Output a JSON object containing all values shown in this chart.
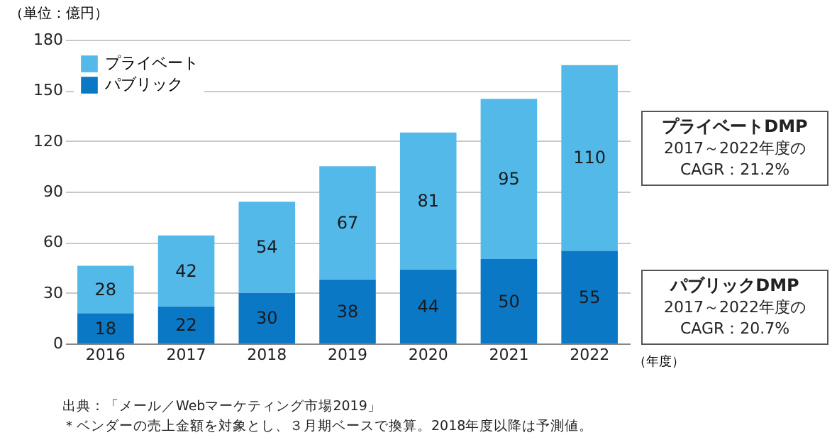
{
  "chart_data": {
    "type": "bar",
    "stacked": true,
    "ylabel": "（単位：億円）",
    "xlabel": "（年度）",
    "categories": [
      "2016",
      "2017",
      "2018",
      "2019",
      "2020",
      "2021",
      "2022"
    ],
    "series": [
      {
        "name": "パブリック",
        "color": "#0b78c6",
        "values": [
          18,
          22,
          30,
          38,
          44,
          50,
          55
        ]
      },
      {
        "name": "プライベート",
        "color": "#53b9e9",
        "values": [
          28,
          42,
          54,
          67,
          81,
          95,
          110
        ]
      }
    ],
    "ylim": [
      0,
      180
    ],
    "yticks": [
      0,
      30,
      60,
      90,
      120,
      150,
      180
    ],
    "grid": "y",
    "legend": "top left",
    "data_labels": true,
    "annotations": [
      "プライベートDMP\n2017～2022年度の\nCAGR：21.2%",
      "パブリックDMP\n2017～2022年度の\nCAGR：20.7%",
      "出典：「メール／Webマーケティング市場2019」",
      "＊ベンダーの売上金額を対象とし、３月期ベースで換算。2018年度以降は予測値。"
    ]
  }
}
